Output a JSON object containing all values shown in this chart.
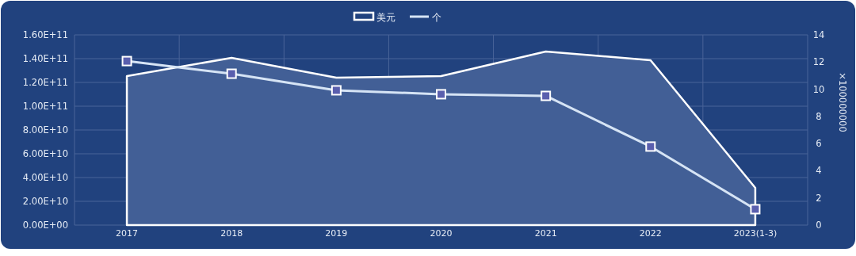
{
  "chart_data": {
    "type": "line",
    "categories": [
      "2017",
      "2018",
      "2019",
      "2020",
      "2021",
      "2022",
      "2023(1-3)"
    ],
    "series": [
      {
        "name": "美元",
        "type": "area",
        "color": "#ffffff",
        "values": [
          125300000000,
          140700000000,
          124000000000,
          125300000000,
          146000000000,
          138700000000,
          31300000000
        ]
      },
      {
        "name": "个",
        "axis": "y2",
        "color": "#d6e4f5",
        "marker": "square",
        "values": [
          12.07,
          11.14,
          9.92,
          9.63,
          9.51,
          5.78,
          1.17
        ]
      }
    ],
    "ylim": [
      0,
      160000000000
    ],
    "yticks": [
      {
        "value": 0,
        "label": "0.00E+00"
      },
      {
        "value": 20000000000,
        "label": "2.00E+10"
      },
      {
        "value": 40000000000,
        "label": "4.00E+10"
      },
      {
        "value": 60000000000,
        "label": "6.00E+10"
      },
      {
        "value": 80000000000,
        "label": "8.00E+10"
      },
      {
        "value": 100000000000,
        "label": "1.00E+11"
      },
      {
        "value": 120000000000,
        "label": "1.20E+11"
      },
      {
        "value": 140000000000,
        "label": "1.40E+11"
      },
      {
        "value": 160000000000,
        "label": "1.60E+11"
      }
    ],
    "y2lim": [
      0,
      14
    ],
    "y2ticks": [
      0,
      2,
      4,
      6,
      8,
      10,
      12,
      14
    ],
    "y2label": "×100000000",
    "grid": true,
    "legend": "top"
  }
}
